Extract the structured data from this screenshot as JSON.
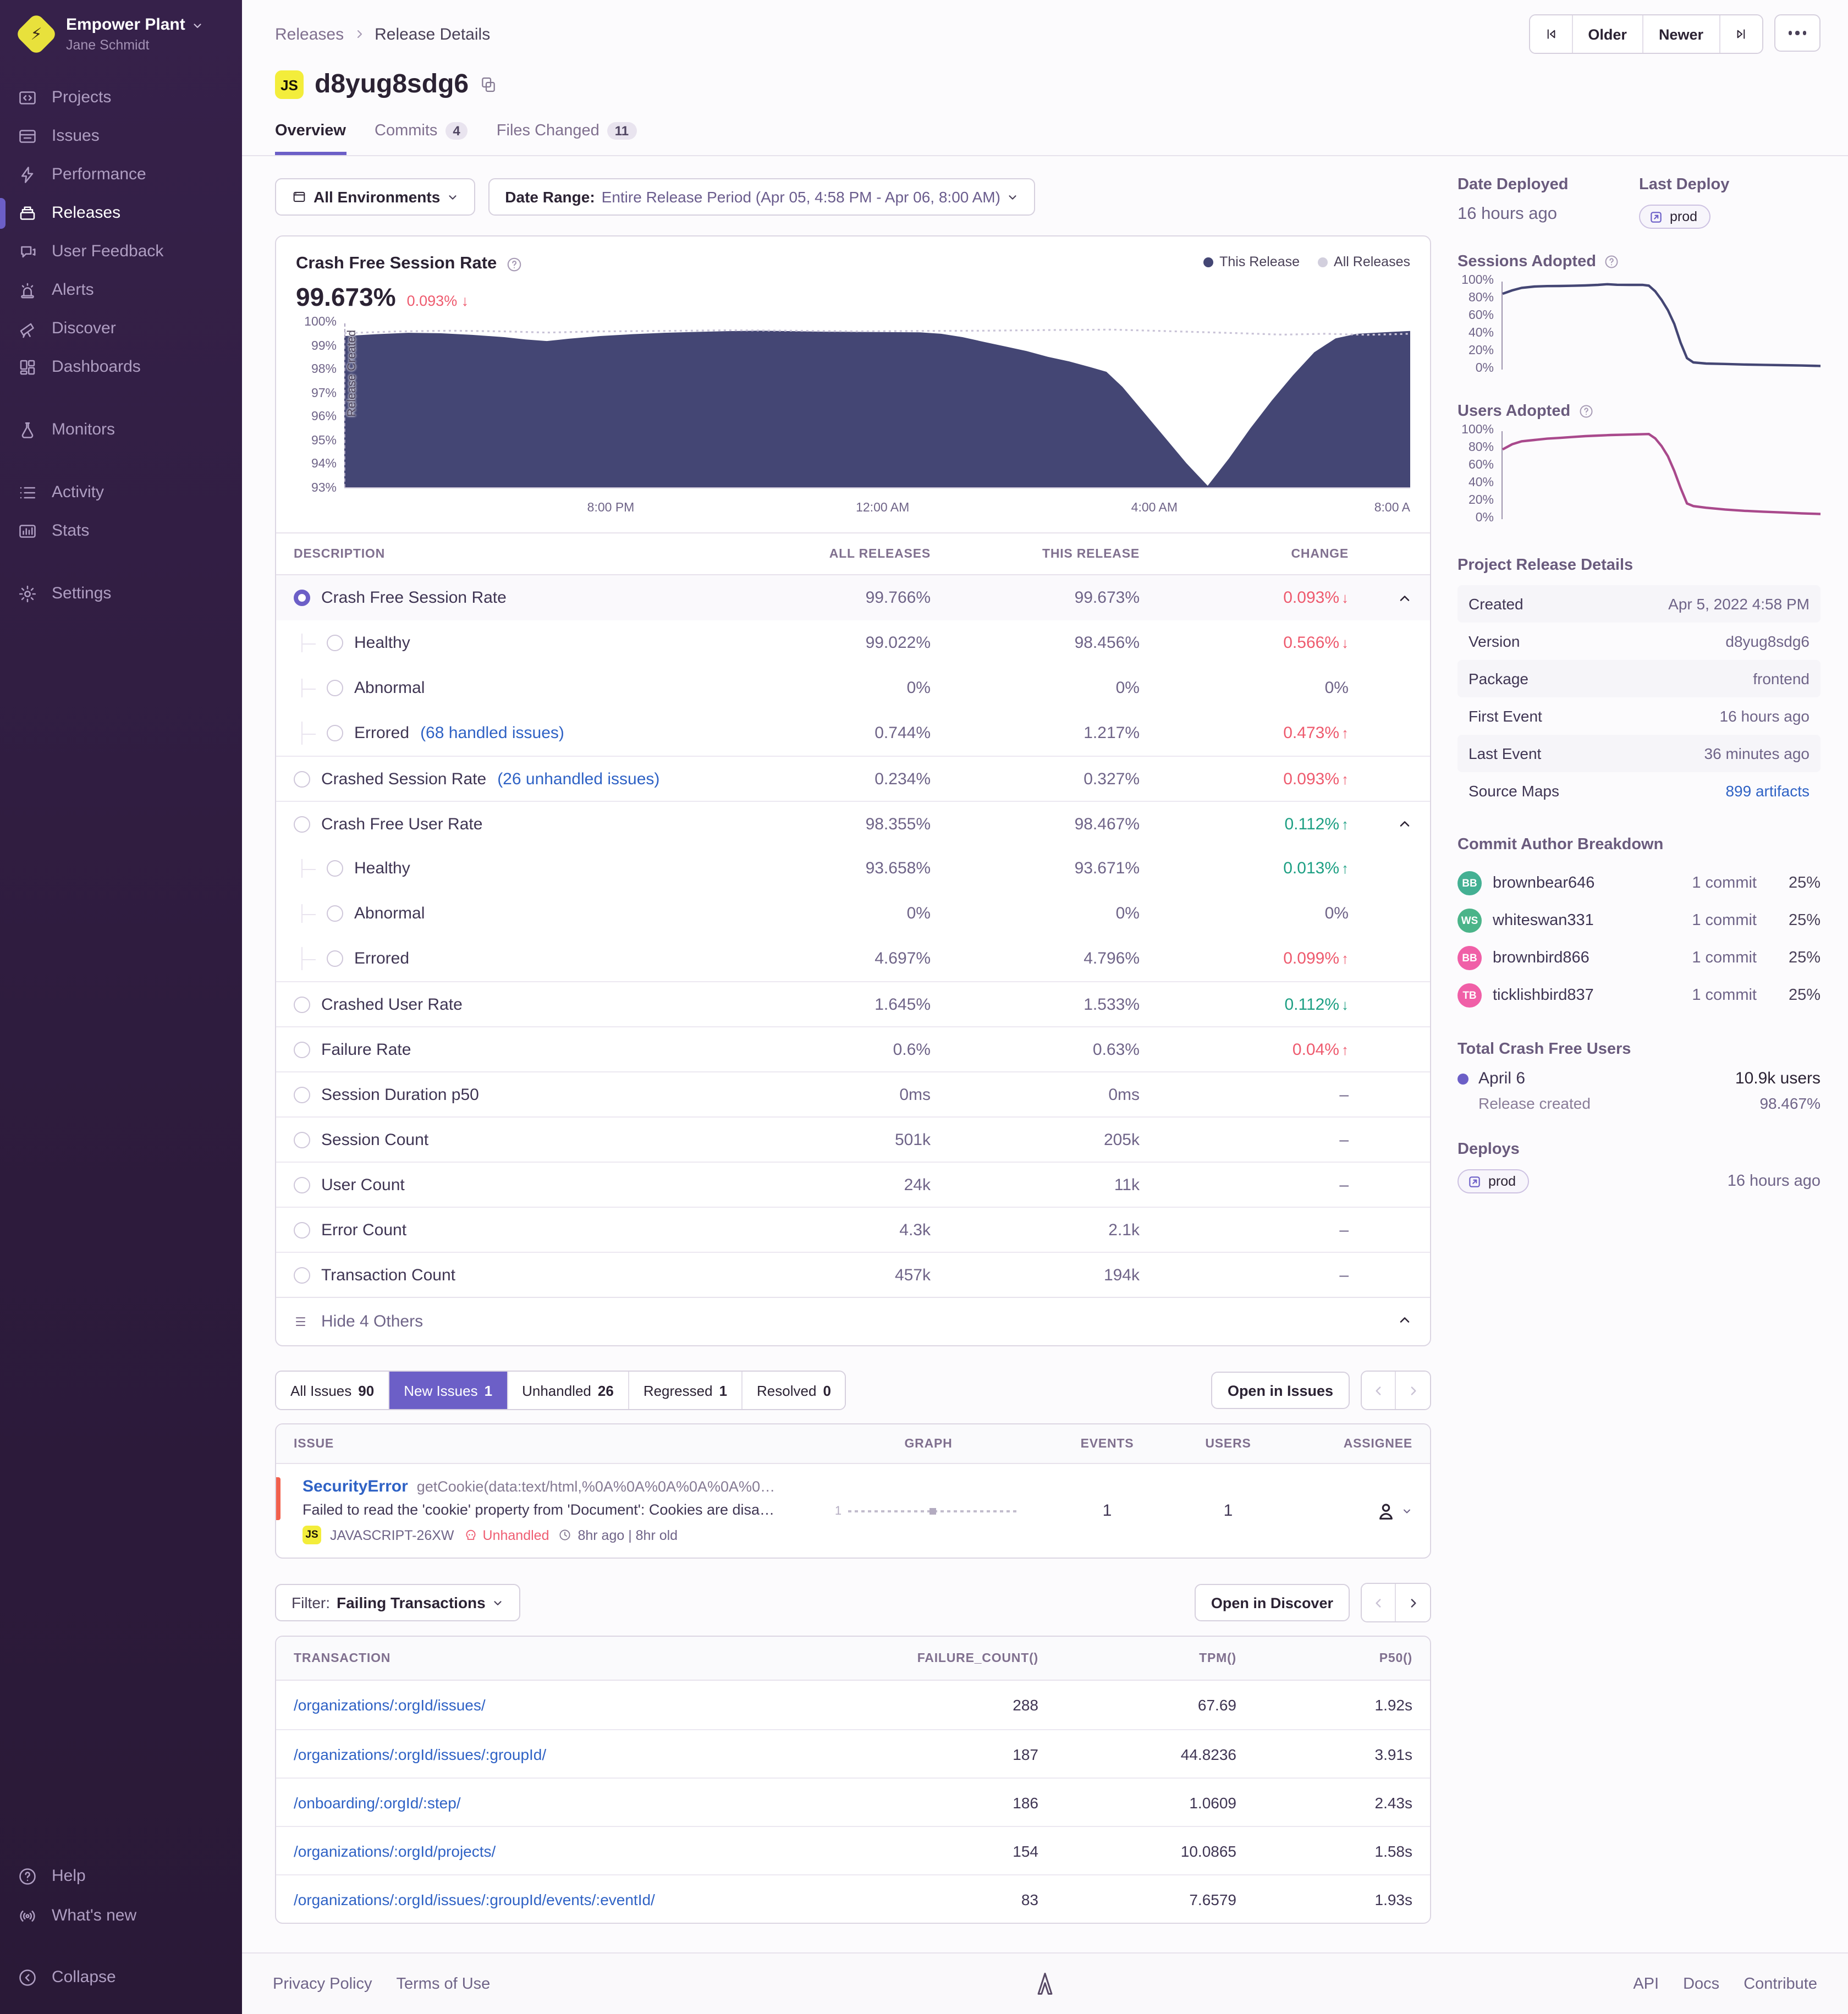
{
  "colors": {
    "accent": "#6c5fc7",
    "negative": "#ee5a6e",
    "positive": "#1d9f83",
    "link": "#2f62c5",
    "issue_bar": "#f2604d",
    "badge_yellow": "#f3ed3b"
  },
  "sidebar": {
    "org": "Empower Plant",
    "user": "Jane Schmidt",
    "active_item": "Releases",
    "items": [
      {
        "label": "Projects",
        "icon": "projects-icon"
      },
      {
        "label": "Issues",
        "icon": "issues-icon"
      },
      {
        "label": "Performance",
        "icon": "performance-icon"
      },
      {
        "label": "Releases",
        "icon": "releases-icon"
      },
      {
        "label": "User Feedback",
        "icon": "user-feedback-icon"
      },
      {
        "label": "Alerts",
        "icon": "alerts-icon"
      },
      {
        "label": "Discover",
        "icon": "discover-icon"
      },
      {
        "label": "Dashboards",
        "icon": "dashboards-icon"
      },
      {
        "label": "Monitors",
        "icon": "monitors-icon"
      },
      {
        "label": "Activity",
        "icon": "activity-icon"
      },
      {
        "label": "Stats",
        "icon": "stats-icon"
      },
      {
        "label": "Settings",
        "icon": "settings-icon"
      }
    ],
    "footer_items": [
      {
        "label": "Help",
        "icon": "help-icon"
      },
      {
        "label": "What's new",
        "icon": "whats-new-icon"
      },
      {
        "label": "Collapse",
        "icon": "collapse-icon"
      }
    ]
  },
  "header": {
    "breadcrumb": {
      "parent": "Releases",
      "current": "Release Details"
    },
    "nav": {
      "older": "Older",
      "newer": "Newer"
    },
    "title": "d8yug8sdg6",
    "title_badge": "JS",
    "tabs": {
      "overview": "Overview",
      "commits": "Commits",
      "commits_count": "4",
      "files": "Files Changed",
      "files_count": "11"
    }
  },
  "filters": {
    "environment": "All Environments",
    "date_range_label": "Date Range:",
    "date_range_value": "Entire Release Period (Apr 05, 4:58 PM - Apr 06, 8:00 AM)"
  },
  "chart": {
    "title": "Crash Free Session Rate",
    "value": "99.673%",
    "change": "0.093%",
    "change_arrow": "↓",
    "legend": [
      {
        "label": "This Release",
        "color": "#444674"
      },
      {
        "label": "All Releases",
        "color": "#d2cfdd"
      }
    ],
    "annotation": "Release Created"
  },
  "chart_data": [
    {
      "type": "area",
      "title": "Crash Free Session Rate",
      "ylim": [
        93,
        100
      ],
      "y_ticks": [
        "100%",
        "99%",
        "98%",
        "97%",
        "96%",
        "95%",
        "94%",
        "93%"
      ],
      "x_ticks": [
        "8:00 PM",
        "12:00 AM",
        "4:00 AM",
        "8:00 A"
      ],
      "x_tick_pos": [
        25,
        50.5,
        76,
        100
      ],
      "legend_position": "top-right",
      "grid": true,
      "series": [
        {
          "name": "This Release",
          "color": "#444674",
          "style": "area",
          "points": [
            [
              0,
              99.5
            ],
            [
              3,
              99.58
            ],
            [
              6,
              99.64
            ],
            [
              9,
              99.62
            ],
            [
              12,
              99.55
            ],
            [
              15,
              99.45
            ],
            [
              17,
              99.35
            ],
            [
              19,
              99.28
            ],
            [
              21,
              99.38
            ],
            [
              24,
              99.5
            ],
            [
              27,
              99.58
            ],
            [
              30,
              99.64
            ],
            [
              33,
              99.68
            ],
            [
              36,
              99.71
            ],
            [
              39,
              99.73
            ],
            [
              42,
              99.71
            ],
            [
              45,
              99.69
            ],
            [
              48,
              99.68
            ],
            [
              51,
              99.67
            ],
            [
              54,
              99.66
            ],
            [
              56,
              99.6
            ],
            [
              58,
              99.45
            ],
            [
              60,
              99.25
            ],
            [
              62,
              99.05
            ],
            [
              64,
              98.85
            ],
            [
              66,
              98.6
            ],
            [
              68,
              98.4
            ],
            [
              70,
              98.15
            ],
            [
              71.5,
              97.95
            ],
            [
              73,
              97.3
            ],
            [
              75,
              96.2
            ],
            [
              77,
              95.1
            ],
            [
              79,
              94.0
            ],
            [
              81,
              93.02
            ],
            [
              83,
              94.2
            ],
            [
              85,
              95.5
            ],
            [
              87,
              96.7
            ],
            [
              89,
              97.8
            ],
            [
              91,
              98.8
            ],
            [
              93,
              99.4
            ],
            [
              95,
              99.6
            ],
            [
              100,
              99.72
            ]
          ]
        },
        {
          "name": "All Releases",
          "color": "#c9c3d7",
          "style": "dotted-line",
          "points": [
            [
              0,
              99.62
            ],
            [
              5,
              99.7
            ],
            [
              10,
              99.73
            ],
            [
              15,
              99.7
            ],
            [
              19,
              99.65
            ],
            [
              24,
              99.7
            ],
            [
              30,
              99.72
            ],
            [
              36,
              99.75
            ],
            [
              42,
              99.73
            ],
            [
              48,
              99.7
            ],
            [
              54,
              99.72
            ],
            [
              60,
              99.73
            ],
            [
              66,
              99.76
            ],
            [
              72,
              99.78
            ],
            [
              78,
              99.7
            ],
            [
              84,
              99.62
            ],
            [
              88,
              99.56
            ],
            [
              92,
              99.6
            ],
            [
              96,
              99.55
            ],
            [
              100,
              99.6
            ]
          ]
        }
      ]
    },
    {
      "type": "line",
      "title": "Sessions Adopted",
      "ylim": [
        0,
        100
      ],
      "y_ticks": [
        "100%",
        "80%",
        "60%",
        "40%",
        "20%",
        "0%"
      ],
      "series": [
        {
          "name": "Sessions Adopted",
          "color": "#444674",
          "points": [
            [
              0,
              87
            ],
            [
              3,
              91
            ],
            [
              6,
              94
            ],
            [
              10,
              95.5
            ],
            [
              14,
              96
            ],
            [
              18,
              96.2
            ],
            [
              22,
              96.4
            ],
            [
              26,
              96.8
            ],
            [
              30,
              97.5
            ],
            [
              33,
              98.2
            ],
            [
              36,
              97.6
            ],
            [
              40,
              97.4
            ],
            [
              44,
              97.5
            ],
            [
              46,
              96.5
            ],
            [
              48,
              90
            ],
            [
              50,
              80
            ],
            [
              52,
              68
            ],
            [
              54,
              52
            ],
            [
              56,
              30
            ],
            [
              58,
              12
            ],
            [
              60,
              7
            ],
            [
              64,
              5.8
            ],
            [
              70,
              5.2
            ],
            [
              76,
              4.6
            ],
            [
              82,
              4.2
            ],
            [
              88,
              3.8
            ],
            [
              94,
              3.4
            ],
            [
              100,
              3
            ]
          ]
        }
      ]
    },
    {
      "type": "line",
      "title": "Users Adopted",
      "ylim": [
        0,
        100
      ],
      "y_ticks": [
        "100%",
        "80%",
        "60%",
        "40%",
        "20%",
        "0%"
      ],
      "series": [
        {
          "name": "Users Adopted",
          "color": "#a9498c",
          "points": [
            [
              0,
              80
            ],
            [
              3,
              86
            ],
            [
              6,
              89.5
            ],
            [
              10,
              91
            ],
            [
              14,
              92.5
            ],
            [
              18,
              93.5
            ],
            [
              22,
              94.5
            ],
            [
              26,
              95.5
            ],
            [
              30,
              96.2
            ],
            [
              34,
              96.8
            ],
            [
              38,
              97.2
            ],
            [
              42,
              97.6
            ],
            [
              46,
              98
            ],
            [
              48,
              93
            ],
            [
              50,
              84
            ],
            [
              52,
              72
            ],
            [
              54,
              55
            ],
            [
              56,
              35
            ],
            [
              58,
              17
            ],
            [
              60,
              14
            ],
            [
              64,
              12
            ],
            [
              70,
              10
            ],
            [
              76,
              8.5
            ],
            [
              82,
              7.5
            ],
            [
              88,
              6.5
            ],
            [
              94,
              5.5
            ],
            [
              100,
              4.8
            ]
          ]
        }
      ]
    }
  ],
  "metrics_table": {
    "headers": [
      "DESCRIPTION",
      "ALL RELEASES",
      "THIS RELEASE",
      "CHANGE"
    ],
    "rows": [
      {
        "label": "Crash Free Session Rate",
        "all": "99.766%",
        "this": "99.673%",
        "change": "0.093%",
        "dir": "down",
        "color": "red",
        "selected": true,
        "expand": true
      },
      {
        "label": "Healthy",
        "child": true,
        "all": "99.022%",
        "this": "98.456%",
        "change": "0.566%",
        "dir": "down",
        "color": "red"
      },
      {
        "label": "Abnormal",
        "child": true,
        "all": "0%",
        "this": "0%",
        "change": "0%",
        "dir": "",
        "color": "gray"
      },
      {
        "label": "Errored",
        "link": "(68 handled issues)",
        "child": true,
        "last": true,
        "all": "0.744%",
        "this": "1.217%",
        "change": "0.473%",
        "dir": "up",
        "color": "red"
      },
      {
        "label": "Crashed Session Rate",
        "link": "(26 unhandled issues)",
        "all": "0.234%",
        "this": "0.327%",
        "change": "0.093%",
        "dir": "up",
        "color": "red"
      },
      {
        "label": "Crash Free User Rate",
        "all": "98.355%",
        "this": "98.467%",
        "change": "0.112%",
        "dir": "up",
        "color": "green",
        "expand": true
      },
      {
        "label": "Healthy",
        "child": true,
        "all": "93.658%",
        "this": "93.671%",
        "change": "0.013%",
        "dir": "up",
        "color": "green"
      },
      {
        "label": "Abnormal",
        "child": true,
        "all": "0%",
        "this": "0%",
        "change": "0%",
        "dir": "",
        "color": "gray"
      },
      {
        "label": "Errored",
        "child": true,
        "last": true,
        "all": "4.697%",
        "this": "4.796%",
        "change": "0.099%",
        "dir": "up",
        "color": "red"
      },
      {
        "label": "Crashed User Rate",
        "all": "1.645%",
        "this": "1.533%",
        "change": "0.112%",
        "dir": "down",
        "color": "green"
      },
      {
        "label": "Failure Rate",
        "all": "0.6%",
        "this": "0.63%",
        "change": "0.04%",
        "dir": "up",
        "color": "red"
      },
      {
        "label": "Session Duration p50",
        "all": "0ms",
        "this": "0ms",
        "change": "–",
        "dir": "",
        "color": "gray"
      },
      {
        "label": "Session Count",
        "all": "501k",
        "this": "205k",
        "change": "–",
        "dir": "",
        "color": "gray"
      },
      {
        "label": "User Count",
        "all": "24k",
        "this": "11k",
        "change": "–",
        "dir": "",
        "color": "gray"
      },
      {
        "label": "Error Count",
        "all": "4.3k",
        "this": "2.1k",
        "change": "–",
        "dir": "",
        "color": "gray"
      },
      {
        "label": "Transaction Count",
        "all": "457k",
        "this": "194k",
        "change": "–",
        "dir": "",
        "color": "gray"
      }
    ],
    "footer_label": "Hide 4 Others"
  },
  "issues": {
    "tabs": [
      {
        "label": "All Issues",
        "count": "90"
      },
      {
        "label": "New Issues",
        "count": "1",
        "active": true
      },
      {
        "label": "Unhandled",
        "count": "26"
      },
      {
        "label": "Regressed",
        "count": "1"
      },
      {
        "label": "Resolved",
        "count": "0"
      }
    ],
    "open_button": "Open in Issues",
    "headers": [
      "ISSUE",
      "GRAPH",
      "EVENTS",
      "USERS",
      "ASSIGNEE"
    ],
    "row": {
      "type": "SecurityError",
      "detail": "getCookie(data:text/html,%0A%0A%0A%0A%0A%0…",
      "message": "Failed to read the 'cookie' property from 'Document': Cookies are disa…",
      "project_badge": "JS",
      "short_id": "JAVASCRIPT-26XW",
      "unhandled_label": "Unhandled",
      "age": "8hr ago | 8hr old",
      "spark_label": "1",
      "events": "1",
      "users": "1"
    }
  },
  "transactions": {
    "filter_label": "Filter:",
    "filter_value": "Failing Transactions",
    "open_button": "Open in Discover",
    "headers": [
      "TRANSACTION",
      "FAILURE_COUNT()",
      "TPM()",
      "P50()"
    ],
    "rows": [
      {
        "transaction": "/organizations/:orgId/issues/",
        "failure_count": "288",
        "tpm": "67.69",
        "p50": "1.92s"
      },
      {
        "transaction": "/organizations/:orgId/issues/:groupId/",
        "failure_count": "187",
        "tpm": "44.8236",
        "p50": "3.91s"
      },
      {
        "transaction": "/onboarding/:orgId/:step/",
        "failure_count": "186",
        "tpm": "1.0609",
        "p50": "2.43s"
      },
      {
        "transaction": "/organizations/:orgId/projects/",
        "failure_count": "154",
        "tpm": "10.0865",
        "p50": "1.58s"
      },
      {
        "transaction": "/organizations/:orgId/issues/:groupId/events/:eventId/",
        "failure_count": "83",
        "tpm": "7.6579",
        "p50": "1.93s"
      }
    ]
  },
  "aside": {
    "date_deployed_label": "Date Deployed",
    "date_deployed": "16 hours ago",
    "last_deploy_label": "Last Deploy",
    "last_deploy_env": "prod",
    "sessions_adopted_label": "Sessions Adopted",
    "users_adopted_label": "Users Adopted",
    "details_title": "Project Release Details",
    "details": [
      {
        "label": "Created",
        "value": "Apr 5, 2022 4:58 PM"
      },
      {
        "label": "Version",
        "value": "d8yug8sdg6"
      },
      {
        "label": "Package",
        "value": "frontend"
      },
      {
        "label": "First Event",
        "value": "16 hours ago"
      },
      {
        "label": "Last Event",
        "value": "36 minutes ago"
      },
      {
        "label": "Source Maps",
        "value": "899 artifacts",
        "link": true
      }
    ],
    "commit_title": "Commit Author Breakdown",
    "authors": [
      {
        "initials": "BB",
        "color": "#44b093",
        "name": "brownbear646",
        "commits": "1 commit",
        "pct": "25%"
      },
      {
        "initials": "WS",
        "color": "#4bb489",
        "name": "whiteswan331",
        "commits": "1 commit",
        "pct": "25%"
      },
      {
        "initials": "BB",
        "color": "#f05fa7",
        "name": "brownbird866",
        "commits": "1 commit",
        "pct": "25%"
      },
      {
        "initials": "TB",
        "color": "#f05fa7",
        "name": "ticklishbird837",
        "commits": "1 commit",
        "pct": "25%"
      }
    ],
    "tcfu_title": "Total Crash Free Users",
    "tcfu_date": "April 6",
    "tcfu_users": "10.9k users",
    "tcfu_sub": "Release created",
    "tcfu_pct": "98.467%",
    "deploys_title": "Deploys",
    "deploy_env": "prod",
    "deploy_time": "16 hours ago"
  },
  "footer": {
    "links_left": [
      "Privacy Policy",
      "Terms of Use"
    ],
    "links_right": [
      "API",
      "Docs",
      "Contribute"
    ]
  }
}
